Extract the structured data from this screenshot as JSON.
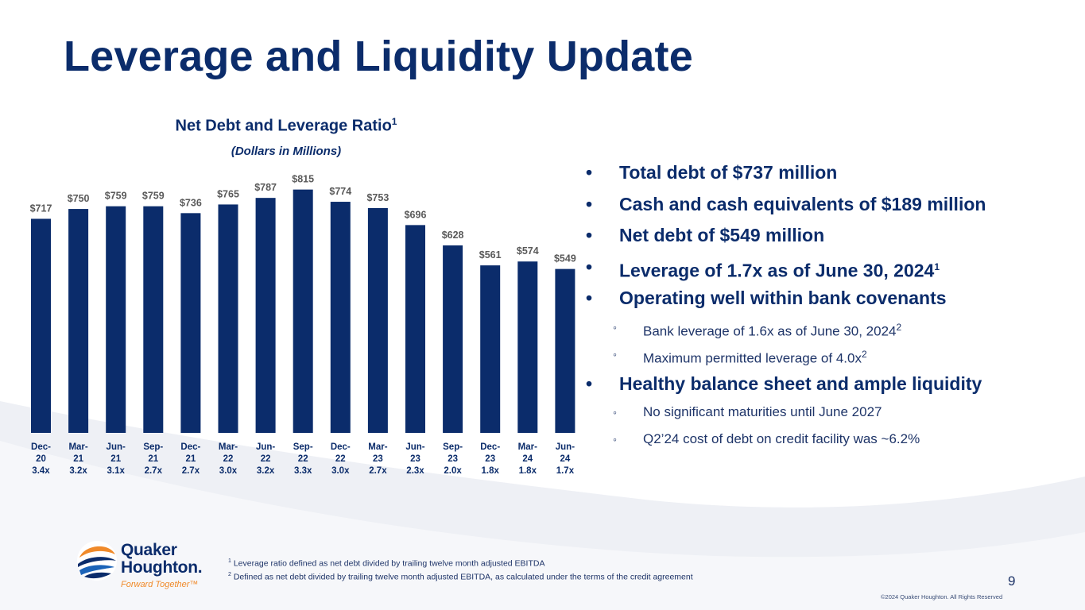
{
  "slide": {
    "title": "Leverage and Liquidity Update",
    "page_number": "9",
    "copyright": "©2024 Quaker Houghton. All Rights Reserved"
  },
  "colors": {
    "bar": "#0b2c6b",
    "title": "#0b2c6b",
    "label": "#5a5a5a",
    "logo_orange": "#f08a2a"
  },
  "chart_data": {
    "type": "bar",
    "title": "Net Debt and Leverage Ratio",
    "title_sup": "1",
    "subtitle": "(Dollars in Millions)",
    "categories": [
      "Dec-20",
      "Mar-21",
      "Jun-21",
      "Sep-21",
      "Dec-21",
      "Mar-22",
      "Jun-22",
      "Sep-22",
      "Dec-22",
      "Mar-23",
      "Jun-23",
      "Sep-23",
      "Dec-23",
      "Mar-24",
      "Jun-24"
    ],
    "category_lines": [
      [
        "Dec-",
        "20"
      ],
      [
        "Mar-",
        "21"
      ],
      [
        "Jun-",
        "21"
      ],
      [
        "Sep-",
        "21"
      ],
      [
        "Dec-",
        "21"
      ],
      [
        "Mar-",
        "22"
      ],
      [
        "Jun-",
        "22"
      ],
      [
        "Sep-",
        "22"
      ],
      [
        "Dec-",
        "22"
      ],
      [
        "Mar-",
        "23"
      ],
      [
        "Jun-",
        "23"
      ],
      [
        "Sep-",
        "23"
      ],
      [
        "Dec-",
        "23"
      ],
      [
        "Mar-",
        "24"
      ],
      [
        "Jun-",
        "24"
      ]
    ],
    "values": [
      717,
      750,
      759,
      759,
      736,
      765,
      787,
      815,
      774,
      753,
      696,
      628,
      561,
      574,
      549
    ],
    "value_labels": [
      "$717",
      "$750",
      "$759",
      "$759",
      "$736",
      "$765",
      "$787",
      "$815",
      "$774",
      "$753",
      "$696",
      "$628",
      "$561",
      "$574",
      "$549"
    ],
    "leverage_labels": [
      "3.4x",
      "3.2x",
      "3.1x",
      "2.7x",
      "2.7x",
      "3.0x",
      "3.2x",
      "3.3x",
      "3.0x",
      "2.7x",
      "2.3x",
      "2.0x",
      "1.8x",
      "1.8x",
      "1.7x"
    ],
    "ylim": [
      0,
      830
    ],
    "grid": false,
    "legend": "none"
  },
  "bullets": [
    {
      "level": 1,
      "text": "Total debt of $737 million"
    },
    {
      "level": 1,
      "text": "Cash and cash equivalents of $189 million"
    },
    {
      "level": 1,
      "text": "Net debt of $549 million"
    },
    {
      "level": 1,
      "text": "Leverage of 1.7x as of June 30, 2024",
      "sup": "1"
    },
    {
      "level": 1,
      "text": "Operating well within bank covenants"
    },
    {
      "level": 2,
      "text": "Bank leverage of 1.6x as of June 30, 2024",
      "sup": "2"
    },
    {
      "level": 2,
      "text": "Maximum permitted leverage of 4.0x",
      "sup": "2"
    },
    {
      "level": 1,
      "text": "Healthy balance sheet and ample liquidity"
    },
    {
      "level": 2,
      "text": "No significant maturities until June 2027"
    },
    {
      "level": 2,
      "text": "Q2’24 cost of debt on credit facility was ~6.2%"
    }
  ],
  "bullet_marks": {
    "level1": "•",
    "level2": "◦"
  },
  "footnotes": [
    {
      "sup": "1",
      "text": "Leverage ratio defined as net debt divided by trailing twelve month adjusted EBITDA"
    },
    {
      "sup": "2",
      "text": "Defined as net debt divided by trailing twelve month adjusted EBITDA, as calculated under the terms of the credit agreement"
    }
  ],
  "logo": {
    "word1": "Quaker",
    "word2": "Houghton.",
    "tagline": "Forward Together™",
    "icon": "quaker-houghton-globe-logo"
  }
}
